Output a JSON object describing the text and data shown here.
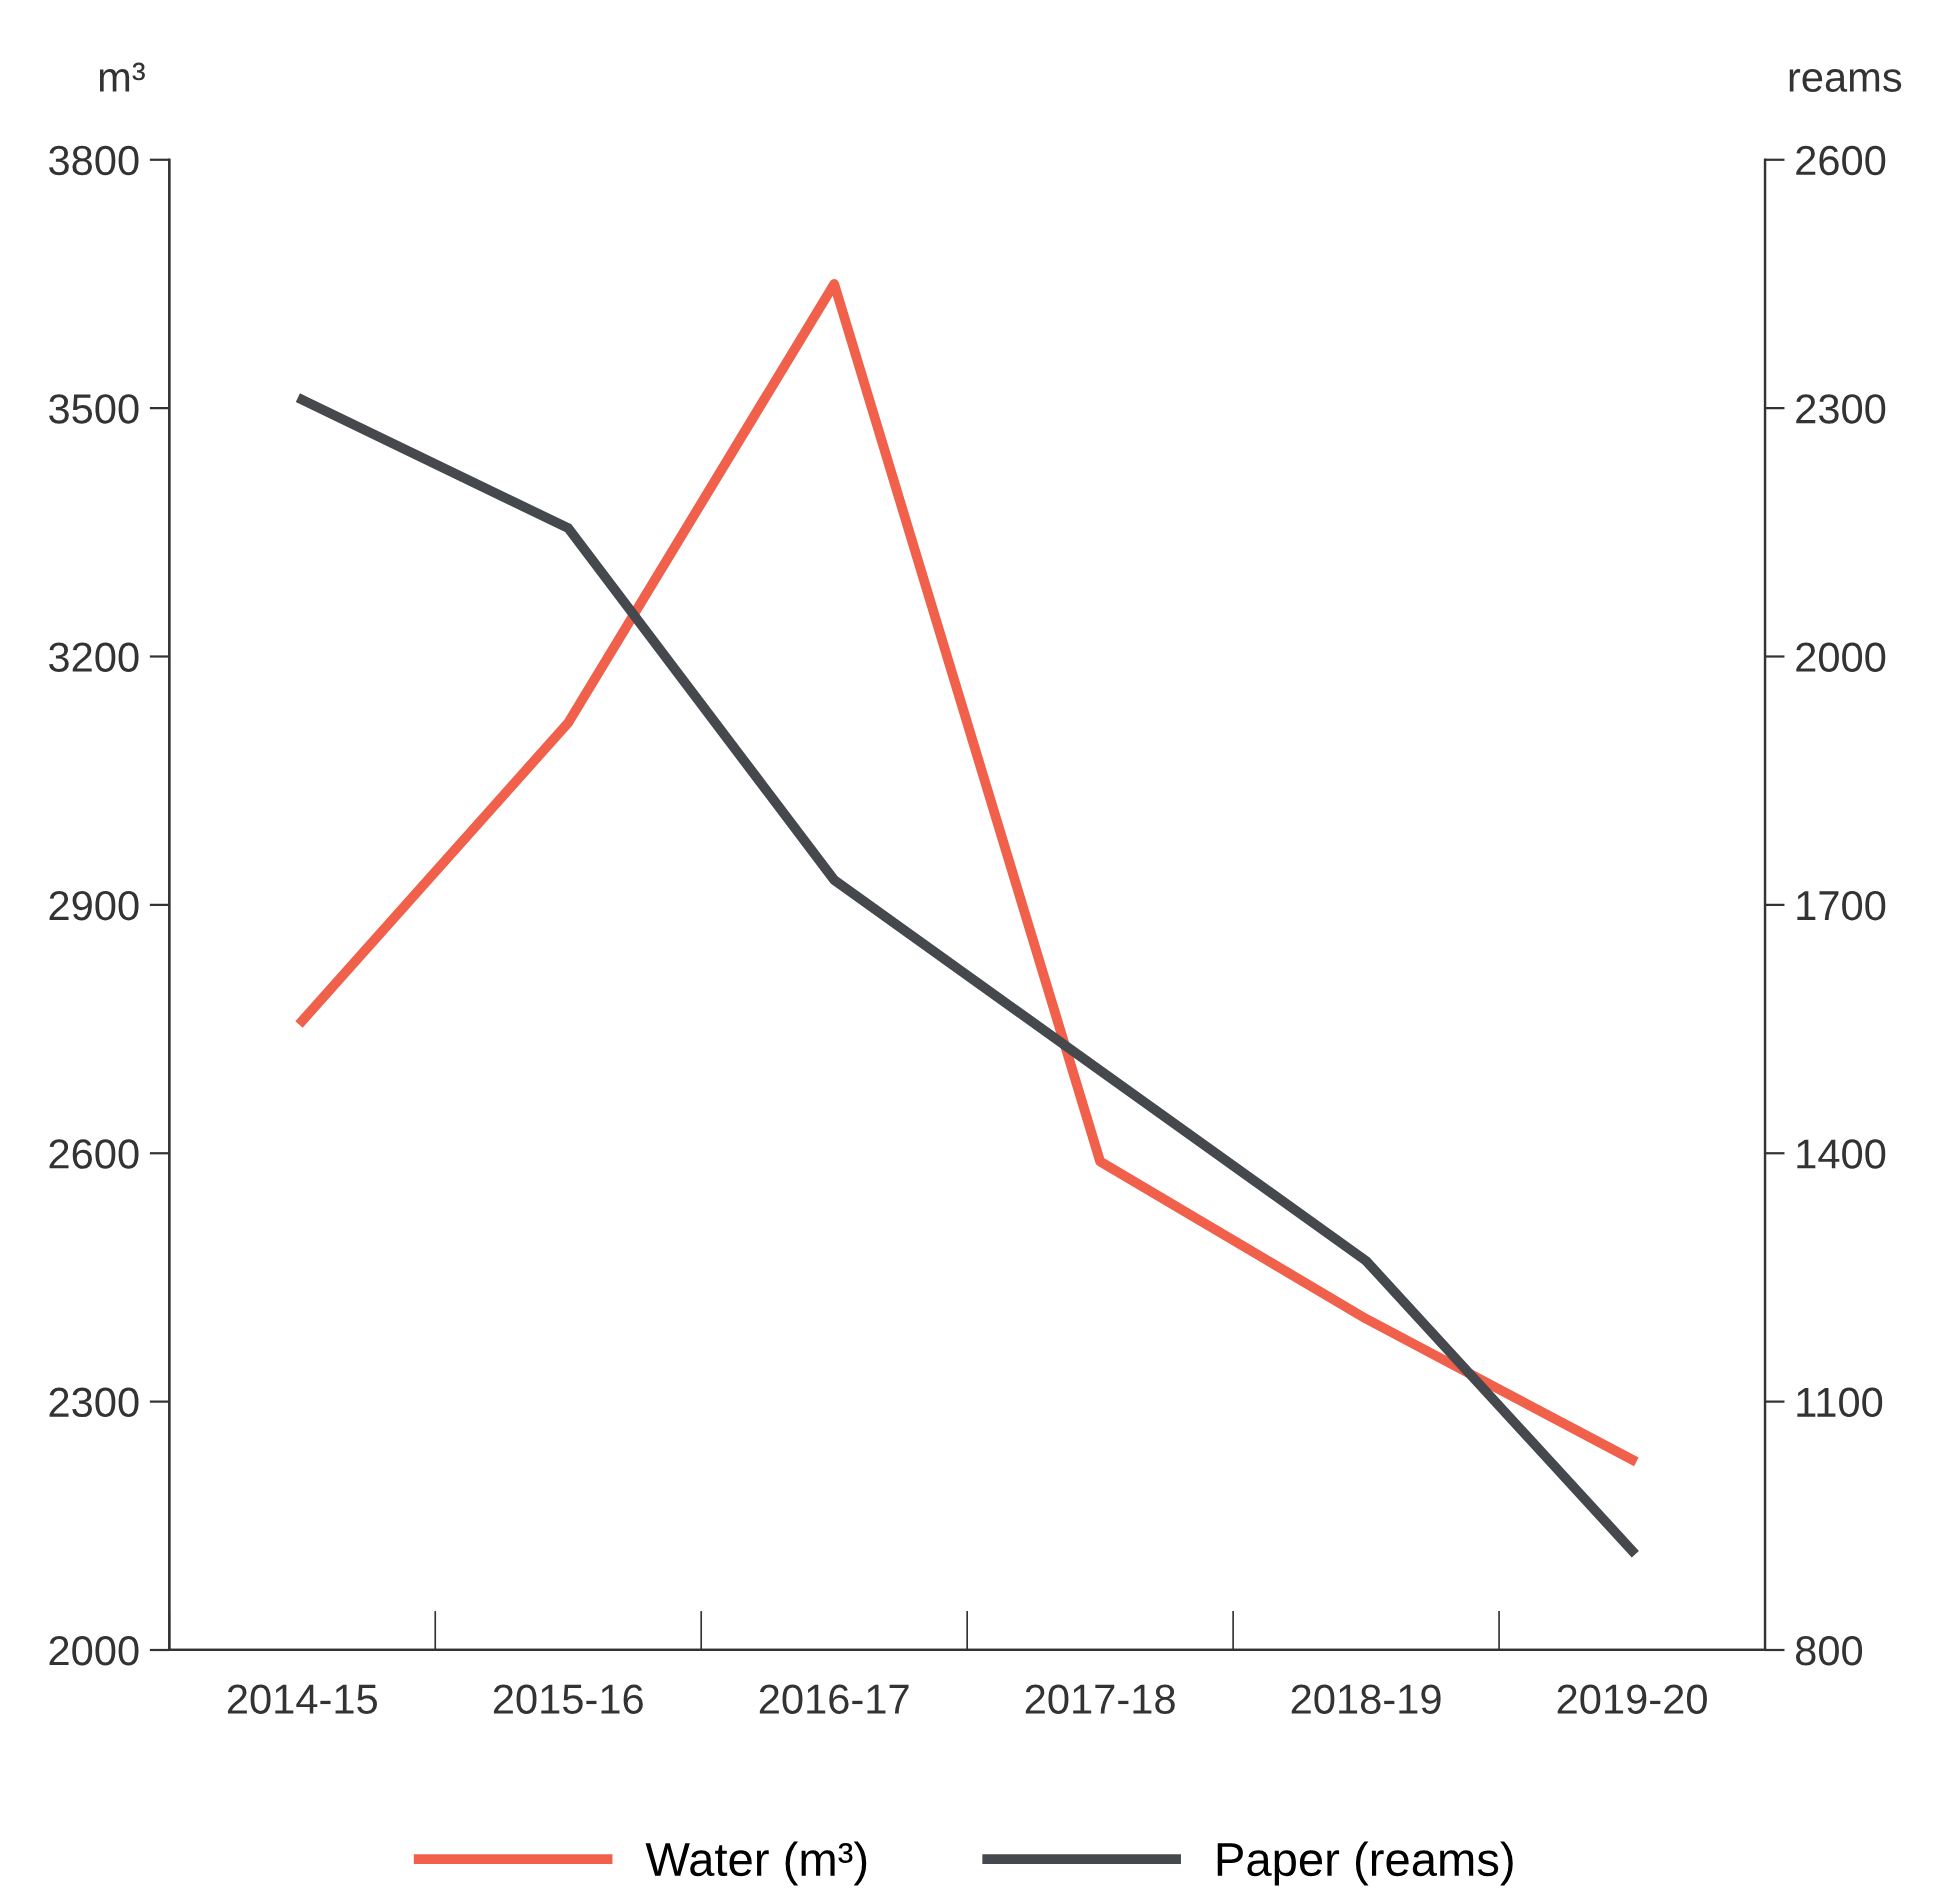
{
  "chart_data": {
    "type": "line",
    "categories": [
      "2014-15",
      "2015-16",
      "2016-17",
      "2017-18",
      "2018-19",
      "2019-20"
    ],
    "series": [
      {
        "name": "Water (m³)",
        "color": "#f0604a",
        "values": [
          2760,
          3120,
          3650,
          2590,
          2400,
          2230
        ]
      },
      {
        "name": "Paper (reams)",
        "color": "#45484c",
        "axis": "y2",
        "values": [
          2310,
          2155,
          1730,
          1500,
          1270,
          920
        ]
      }
    ],
    "ylabel": "m³",
    "y2label": "reams",
    "ylim": [
      2000,
      3800
    ],
    "yticks": [
      2000,
      2300,
      2600,
      2900,
      3200,
      3500,
      3800
    ],
    "y2lim": [
      800,
      2600
    ],
    "y2ticks": [
      800,
      1100,
      1400,
      1700,
      2000,
      2300,
      2600
    ],
    "grid": false,
    "legend": "bottom",
    "marker": "none",
    "line_style": "solid"
  }
}
